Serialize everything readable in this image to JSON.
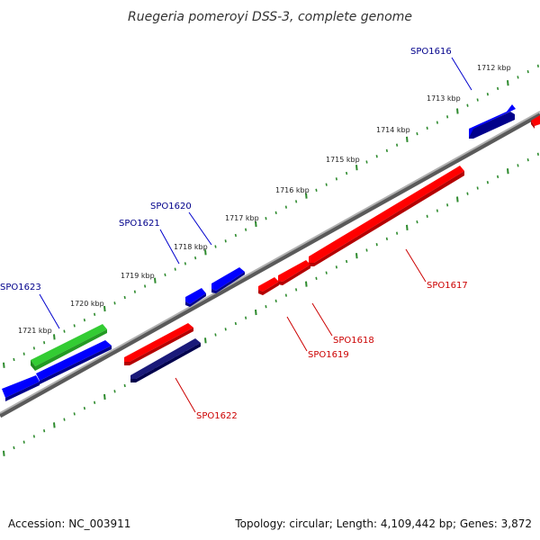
{
  "title": "Ruegeria pomeroyi DSS-3, complete genome",
  "footer": {
    "accession": "Accession: NC_003911",
    "summary": "Topology: circular; Length: 4,109,442 bp; Genes: 3,872"
  },
  "colors": {
    "backbone": "#8c8c8c",
    "tick": "#2e8b2e",
    "forward_gene": "#0000ff",
    "reverse_gene": "#ff0000",
    "highlight_forward": "#00008b",
    "rna_gene": "#33cc33",
    "forward_label": "#00008b",
    "reverse_label": "#cc0000"
  },
  "scale_labels": [
    "1712 kbp",
    "1713 kbp",
    "1714 kbp",
    "1715 kbp",
    "1716 kbp",
    "1717 kbp",
    "1718 kbp",
    "1719 kbp",
    "1720 kbp",
    "1721 kbp"
  ],
  "gene_labels": [
    {
      "name": "SPO1616",
      "strand": "forward"
    },
    {
      "name": "SPO1620",
      "strand": "forward"
    },
    {
      "name": "SPO1621",
      "strand": "forward"
    },
    {
      "name": "SPO1623",
      "strand": "forward"
    },
    {
      "name": "SPO1617",
      "strand": "reverse"
    },
    {
      "name": "SPO1618",
      "strand": "reverse"
    },
    {
      "name": "SPO1619",
      "strand": "reverse"
    },
    {
      "name": "SPO1622",
      "strand": "reverse"
    }
  ]
}
